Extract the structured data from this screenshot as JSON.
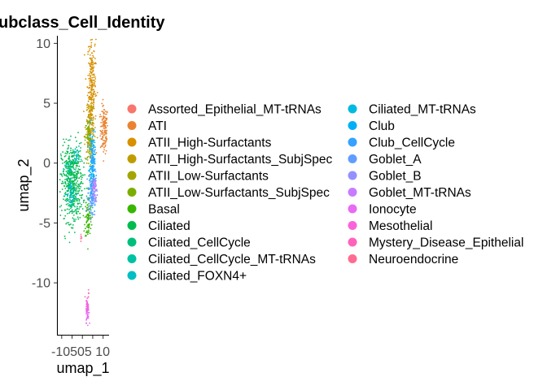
{
  "chart_data": {
    "type": "scatter",
    "title": "ubclass_Cell_Identity",
    "xlabel": "umap_1",
    "ylabel": "umap_2",
    "x_ticks": [
      "-10",
      "-5",
      "0",
      "5",
      "10"
    ],
    "x_tick_labels_rendered": "-10505 10",
    "y_ticks": [
      10,
      5,
      0,
      -5,
      -10
    ],
    "xlim": [
      -11.5,
      12.5
    ],
    "ylim": [
      -14.2,
      10.5
    ],
    "grid": false,
    "legend_position": "right",
    "legend_columns": 2,
    "series": [
      {
        "name": "Assorted_Epithelial_MT-tRNAs",
        "color": "#F8766D",
        "clusters": []
      },
      {
        "name": "ATI",
        "color": "#EA8331",
        "clusters": [
          {
            "cx": 10.5,
            "cy": 2.8,
            "sx": 0.9,
            "sy": 1.0,
            "n": 140
          }
        ]
      },
      {
        "name": "ATII_High-Surfactants",
        "color": "#D89000",
        "clusters": [
          {
            "cx": 4.5,
            "cy": 6.5,
            "sx": 1.0,
            "sy": 2.2,
            "n": 260
          }
        ]
      },
      {
        "name": "ATII_High-Surfactants_SubjSpec",
        "color": "#C09B00",
        "clusters": [
          {
            "cx": 3.8,
            "cy": 3.2,
            "sx": 1.1,
            "sy": 1.1,
            "n": 120
          }
        ]
      },
      {
        "name": "ATII_Low-Surfactants",
        "color": "#A3A500",
        "clusters": [
          {
            "cx": 3.2,
            "cy": 1.5,
            "sx": 0.9,
            "sy": 0.9,
            "n": 60
          }
        ]
      },
      {
        "name": "ATII_Low-Surfactants_SubjSpec",
        "color": "#7CAE00",
        "clusters": [
          {
            "cx": 3.0,
            "cy": 2.2,
            "sx": 0.8,
            "sy": 0.8,
            "n": 40
          }
        ]
      },
      {
        "name": "Basal",
        "color": "#39B600",
        "clusters": [
          {
            "cx": 2.8,
            "cy": -4.6,
            "sx": 0.8,
            "sy": 0.9,
            "n": 90
          }
        ]
      },
      {
        "name": "Ciliated",
        "color": "#00BB4E",
        "clusters": [
          {
            "cx": -5.0,
            "cy": -1.6,
            "sx": 2.6,
            "sy": 1.6,
            "n": 520
          }
        ]
      },
      {
        "name": "Ciliated_CellCycle",
        "color": "#00BF7D",
        "clusters": [
          {
            "cx": -4.5,
            "cy": -3.2,
            "sx": 1.2,
            "sy": 0.6,
            "n": 40
          }
        ]
      },
      {
        "name": "Ciliated_CellCycle_MT-tRNAs",
        "color": "#00C1A3",
        "clusters": [
          {
            "cx": -6.5,
            "cy": -0.5,
            "sx": 1.0,
            "sy": 0.6,
            "n": 30
          }
        ]
      },
      {
        "name": "Ciliated_FOXN4+",
        "color": "#00BFC4",
        "clusters": [
          {
            "cx": -3.0,
            "cy": 0.5,
            "sx": 0.8,
            "sy": 0.5,
            "n": 25
          }
        ]
      },
      {
        "name": "Ciliated_MT-tRNAs",
        "color": "#00BAE0",
        "clusters": [
          {
            "cx": -5.5,
            "cy": -2.5,
            "sx": 1.2,
            "sy": 0.7,
            "n": 35
          }
        ]
      },
      {
        "name": "Club",
        "color": "#00B0F6",
        "clusters": [
          {
            "cx": 4.7,
            "cy": -0.6,
            "sx": 0.7,
            "sy": 1.6,
            "n": 200
          }
        ]
      },
      {
        "name": "Club_CellCycle",
        "color": "#35A2FF",
        "clusters": [
          {
            "cx": 5.0,
            "cy": 0.2,
            "sx": 0.5,
            "sy": 0.6,
            "n": 30
          }
        ]
      },
      {
        "name": "Goblet_A",
        "color": "#619CFF",
        "clusters": [
          {
            "cx": 4.3,
            "cy": -2.8,
            "sx": 0.8,
            "sy": 0.8,
            "n": 70
          }
        ]
      },
      {
        "name": "Goblet_B",
        "color": "#9590FF",
        "clusters": [
          {
            "cx": 6.2,
            "cy": -2.4,
            "sx": 0.5,
            "sy": 0.8,
            "n": 50
          }
        ]
      },
      {
        "name": "Goblet_MT-tRNAs",
        "color": "#C77CFF",
        "clusters": [
          {
            "cx": 5.5,
            "cy": -1.8,
            "sx": 0.5,
            "sy": 0.5,
            "n": 30
          }
        ]
      },
      {
        "name": "Ionocyte",
        "color": "#E76BF3",
        "clusters": [
          {
            "cx": 2.5,
            "cy": -12.4,
            "sx": 0.35,
            "sy": 0.45,
            "n": 60
          }
        ]
      },
      {
        "name": "Mesothelial",
        "color": "#FA62DB",
        "clusters": [
          {
            "cx": 2.3,
            "cy": -11.8,
            "sx": 0.3,
            "sy": 0.3,
            "n": 20
          }
        ]
      },
      {
        "name": "Mystery_Disease_Epithelial",
        "color": "#FF62BC",
        "clusters": [
          {
            "cx": 3.0,
            "cy": -10.9,
            "sx": 0.1,
            "sy": 0.2,
            "n": 6
          }
        ]
      },
      {
        "name": "Neuroendocrine",
        "color": "#FF6C91",
        "clusters": [
          {
            "cx": -0.6,
            "cy": -6.2,
            "sx": 0.2,
            "sy": 0.2,
            "n": 6
          }
        ]
      }
    ]
  }
}
